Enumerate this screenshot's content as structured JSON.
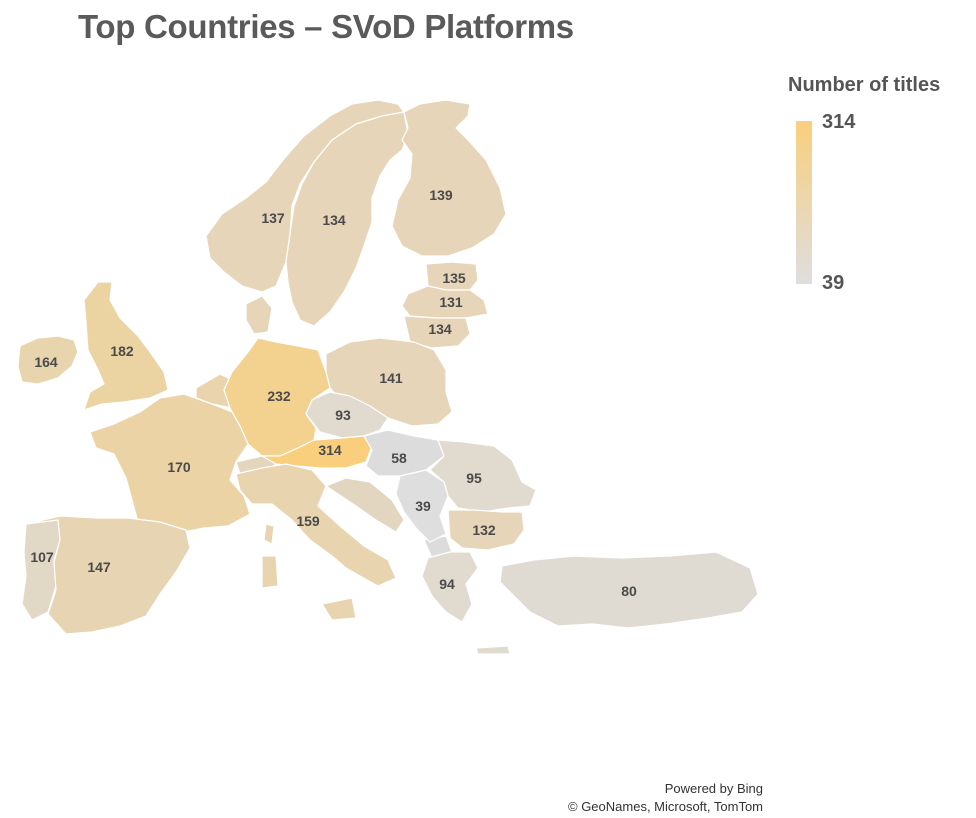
{
  "title": "Top Countries – SVoD Platforms",
  "legend": {
    "title": "Number of titles",
    "max": "314",
    "min": "39",
    "max_color": "#f9cf7d",
    "min_color": "#dedede"
  },
  "attribution": {
    "line1": "Powered by Bing",
    "line2": "© GeoNames, Microsoft, TomTom"
  },
  "chart_data": {
    "type": "choropleth",
    "title": "Top Countries – SVoD Platforms",
    "legend_title": "Number of titles",
    "color_scale": {
      "min": 39,
      "max": 314,
      "min_color": "#dedede",
      "max_color": "#f9cf7d"
    },
    "regions": [
      {
        "label": "137",
        "value": 137,
        "color": "#e6d5b8"
      },
      {
        "label": "134",
        "value": 134,
        "color": "#e6d5b8"
      },
      {
        "label": "139",
        "value": 139,
        "color": "#e6d5b8"
      },
      {
        "label": "135",
        "value": 135,
        "color": "#e6d5b8"
      },
      {
        "label": "131",
        "value": 131,
        "color": "#e6d5b8"
      },
      {
        "label": "134",
        "value": 134,
        "color": "#e6d5b8"
      },
      {
        "label": "164",
        "value": 164,
        "color": "#e8d4ad"
      },
      {
        "label": "182",
        "value": 182,
        "color": "#ecd3a2"
      },
      {
        "label": "141",
        "value": 141,
        "color": "#e6d5b8"
      },
      {
        "label": "232",
        "value": 232,
        "color": "#f3d18e"
      },
      {
        "label": "93",
        "value": 93,
        "color": "#e0dacf"
      },
      {
        "label": "314",
        "value": 314,
        "color": "#f9cf7d"
      },
      {
        "label": "58",
        "value": 58,
        "color": "#dcdcdc"
      },
      {
        "label": "95",
        "value": 95,
        "color": "#e0dacf"
      },
      {
        "label": "170",
        "value": 170,
        "color": "#ecd3a5"
      },
      {
        "label": "159",
        "value": 159,
        "color": "#e8d4ae"
      },
      {
        "label": "39",
        "value": 39,
        "color": "#dedede"
      },
      {
        "label": "132",
        "value": 132,
        "color": "#e6d5b8"
      },
      {
        "label": "107",
        "value": 107,
        "color": "#e2d8c6"
      },
      {
        "label": "147",
        "value": 147,
        "color": "#e7d4b2"
      },
      {
        "label": "94",
        "value": 94,
        "color": "#e0dacf"
      },
      {
        "label": "80",
        "value": 80,
        "color": "#dfdbd2"
      }
    ]
  }
}
